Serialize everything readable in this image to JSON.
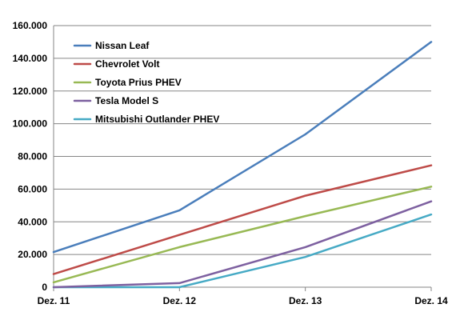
{
  "chart_data": {
    "type": "line",
    "title": "",
    "xlabel": "",
    "ylabel": "",
    "x": [
      "Dez. 11",
      "Dez. 12",
      "Dez. 13",
      "Dez. 14"
    ],
    "ylim": [
      0,
      160000
    ],
    "y_ticks": [
      0,
      20000,
      40000,
      60000,
      80000,
      100000,
      120000,
      140000,
      160000
    ],
    "y_tick_labels": [
      "0",
      "20.000",
      "40.000",
      "60.000",
      "80.000",
      "100.000",
      "120.000",
      "140.000",
      "160.000"
    ],
    "grid": true,
    "legend_position": "top-left",
    "series": [
      {
        "name": "Nissan Leaf",
        "color": "#4a7ebb",
        "values": [
          21500,
          47000,
          93500,
          150000
        ]
      },
      {
        "name": "Chevrolet Volt",
        "color": "#be4b48",
        "values": [
          8000,
          32000,
          56000,
          74500
        ]
      },
      {
        "name": "Toyota Prius PHEV",
        "color": "#98b954",
        "values": [
          3000,
          24500,
          43500,
          61500
        ]
      },
      {
        "name": "Tesla Model S",
        "color": "#7d60a0",
        "values": [
          0,
          2500,
          24500,
          52500
        ]
      },
      {
        "name": "Mitsubishi Outlander PHEV",
        "color": "#46aac5",
        "values": [
          0,
          0,
          18500,
          44500
        ]
      }
    ]
  }
}
